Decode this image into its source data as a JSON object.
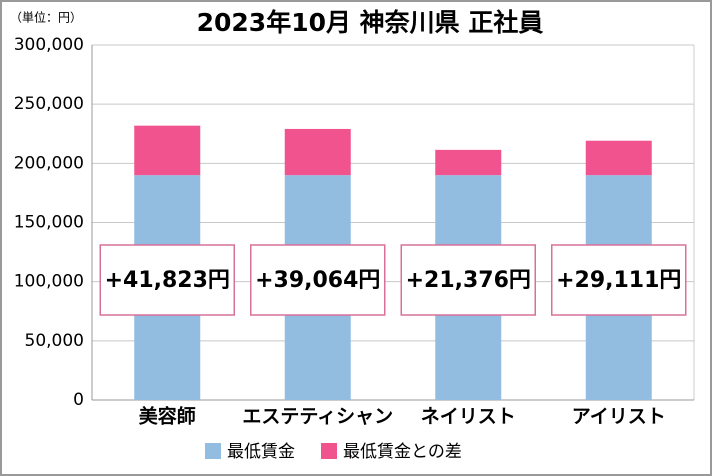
{
  "chart_data": {
    "type": "stacked_bar",
    "title": "2023年10月 神奈川県 正社員",
    "unit_note": "（単位：円）",
    "categories": [
      "美容師",
      "エステティシャン",
      "ネイリスト",
      "アイリスト"
    ],
    "series": [
      {
        "name": "最低賃金",
        "color": "#92bde0",
        "values": [
          190000,
          190000,
          190000,
          190000
        ]
      },
      {
        "name": "最低賃金との差",
        "color": "#f0538d",
        "values": [
          41823,
          39064,
          21376,
          29111
        ],
        "value_labels": [
          "+41,823円",
          "+39,064円",
          "+21,376円",
          "+29,111円"
        ]
      }
    ],
    "ylim": [
      0,
      300000
    ],
    "yticks": [
      0,
      {
        "value": 50000,
        "label": "50,000"
      },
      {
        "value": 100000,
        "label": "100,000"
      },
      {
        "value": 150000,
        "label": "150,000"
      },
      {
        "value": 200000,
        "label": "200,000"
      },
      {
        "value": 250000,
        "label": "250,000"
      },
      {
        "value": 300000,
        "label": "300,000"
      }
    ],
    "grid": true
  }
}
